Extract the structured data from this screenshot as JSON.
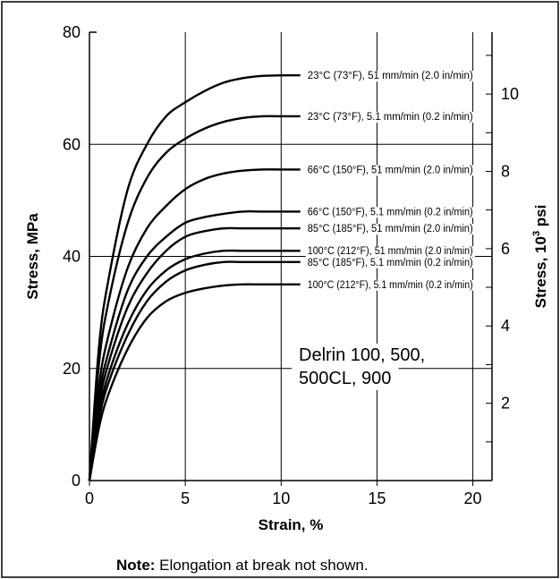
{
  "chart_data": {
    "type": "line",
    "title": "",
    "xlabel": "Strain, %",
    "ylabel": "Stress, MPa",
    "y2label": "Stress, 10³ psi",
    "y2label_main": "Stress, 10",
    "y2label_sup": "3",
    "y2label_tail": " psi",
    "xlim": [
      0,
      21
    ],
    "ylim": [
      0,
      80
    ],
    "y2lim": [
      0,
      11.6
    ],
    "x_ticks": [
      "0",
      "5",
      "10",
      "15",
      "20"
    ],
    "y_ticks": [
      "0",
      "20",
      "40",
      "60",
      "80"
    ],
    "y2_ticks": [
      "2",
      "4",
      "6",
      "8",
      "10"
    ],
    "grid": true,
    "legend": "none",
    "annotation_lines": [
      "Delrin 100, 500,",
      "500CL, 900"
    ],
    "series": [
      {
        "name": "23°C (73°F), 51 mm/min (2.0 in/min)",
        "x": [
          0,
          0.5,
          1,
          2,
          3,
          4,
          5,
          6,
          7,
          8,
          9,
          10,
          11
        ],
        "y": [
          0,
          24,
          36,
          52,
          60,
          65,
          67.5,
          69.5,
          71,
          71.8,
          72.2,
          72.3,
          72.3
        ]
      },
      {
        "name": "23°C (73°F), 5.1 mm/min (0.2 in/min)",
        "x": [
          0,
          0.5,
          1,
          2,
          3,
          4,
          5,
          6,
          7,
          8,
          9,
          10,
          11
        ],
        "y": [
          0,
          21,
          32,
          46,
          54,
          58.5,
          61,
          62.8,
          64,
          64.7,
          65,
          65,
          65
        ]
      },
      {
        "name": "66°C (150°F), 51 mm/min (2.0 in/min)",
        "x": [
          0,
          0.5,
          1,
          2,
          3,
          4,
          5,
          6,
          7,
          8,
          9,
          10,
          11
        ],
        "y": [
          0,
          17,
          26,
          38,
          45,
          49,
          52,
          53.8,
          54.8,
          55.3,
          55.5,
          55.5,
          55.5
        ]
      },
      {
        "name": "66°C (150°F), 5.1 mm/min (0.2 in/min)",
        "x": [
          0,
          0.5,
          1,
          2,
          3,
          4,
          5,
          6,
          7,
          8,
          9,
          10,
          11
        ],
        "y": [
          0,
          15,
          23,
          34,
          40,
          43.5,
          46,
          47,
          47.6,
          48,
          48,
          48,
          48
        ]
      },
      {
        "name": "85°C (185°F), 51 mm/min (2.0 in/min)",
        "x": [
          0,
          0.5,
          1,
          2,
          3,
          4,
          5,
          6,
          7,
          8,
          9,
          10,
          11
        ],
        "y": [
          0,
          13.5,
          21,
          31,
          37,
          41,
          43.5,
          44.5,
          45,
          45,
          45,
          45,
          45
        ]
      },
      {
        "name": "100°C (212°F), 51 mm/min (2.0 in/min)",
        "x": [
          0,
          0.5,
          1,
          2,
          3,
          4,
          5,
          6,
          7,
          8,
          9,
          10,
          11
        ],
        "y": [
          0,
          12,
          19,
          28,
          34,
          37.5,
          39.5,
          40.5,
          41,
          41,
          41,
          41,
          41
        ]
      },
      {
        "name": "85°C (185°F), 5.1 mm/min (0.2 in/min)",
        "x": [
          0,
          0.5,
          1,
          2,
          3,
          4,
          5,
          6,
          7,
          8,
          9,
          10,
          11
        ],
        "y": [
          0,
          11,
          17.5,
          26,
          32,
          35.5,
          37.5,
          38.5,
          39,
          39,
          39,
          39,
          39
        ]
      },
      {
        "name": "100°C (212°F), 5.1 mm/min (0.2 in/min)",
        "x": [
          0,
          0.5,
          1,
          2,
          3,
          4,
          5,
          6,
          7,
          8,
          9,
          10,
          11
        ],
        "y": [
          0,
          9.5,
          15.5,
          23.5,
          29,
          32,
          33.5,
          34.3,
          34.8,
          35,
          35,
          35,
          35
        ]
      }
    ]
  },
  "note": {
    "label": "Note:",
    "text": " Elongation at break not shown."
  }
}
